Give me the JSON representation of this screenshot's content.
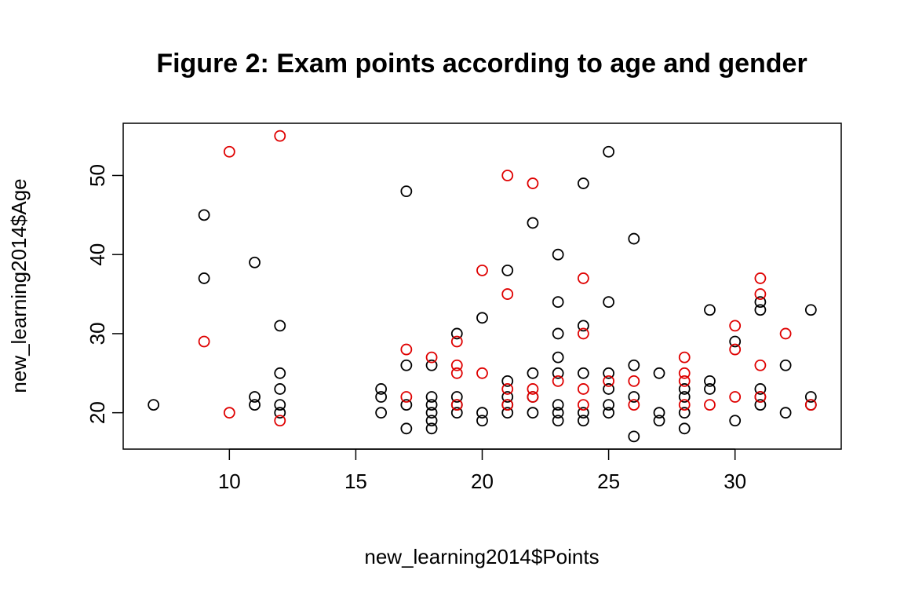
{
  "chart_data": {
    "type": "scatter",
    "title": "Figure 2: Exam points according to age and gender",
    "xlabel": "new_learning2014$Points",
    "ylabel": "new_learning2014$Age",
    "xlim": [
      5.8,
      34.2
    ],
    "ylim": [
      15.4,
      56.6
    ],
    "xticks": [
      10,
      15,
      20,
      25,
      30
    ],
    "yticks": [
      20,
      30,
      40,
      50
    ],
    "grid": false,
    "legend": "none",
    "series": [
      {
        "color": "#000000",
        "points": [
          [
            7,
            21
          ],
          [
            9,
            45
          ],
          [
            9,
            37
          ],
          [
            11,
            39
          ],
          [
            11,
            22
          ],
          [
            11,
            21
          ],
          [
            12,
            31
          ],
          [
            12,
            25
          ],
          [
            12,
            23
          ],
          [
            12,
            21
          ],
          [
            12,
            20
          ],
          [
            16,
            23
          ],
          [
            16,
            22
          ],
          [
            16,
            20
          ],
          [
            17,
            48
          ],
          [
            17,
            26
          ],
          [
            17,
            21
          ],
          [
            17,
            18
          ],
          [
            18,
            26
          ],
          [
            18,
            22
          ],
          [
            18,
            21
          ],
          [
            18,
            20
          ],
          [
            18,
            19
          ],
          [
            18,
            18
          ],
          [
            19,
            30
          ],
          [
            19,
            22
          ],
          [
            19,
            21
          ],
          [
            19,
            20
          ],
          [
            20,
            32
          ],
          [
            20,
            20
          ],
          [
            20,
            19
          ],
          [
            21,
            38
          ],
          [
            21,
            24
          ],
          [
            21,
            22
          ],
          [
            21,
            21
          ],
          [
            21,
            20
          ],
          [
            22,
            44
          ],
          [
            22,
            25
          ],
          [
            22,
            22
          ],
          [
            22,
            20
          ],
          [
            23,
            40
          ],
          [
            23,
            34
          ],
          [
            23,
            30
          ],
          [
            23,
            27
          ],
          [
            23,
            25
          ],
          [
            23,
            21
          ],
          [
            23,
            20
          ],
          [
            23,
            19
          ],
          [
            24,
            49
          ],
          [
            24,
            31
          ],
          [
            24,
            25
          ],
          [
            24,
            20
          ],
          [
            24,
            19
          ],
          [
            25,
            53
          ],
          [
            25,
            34
          ],
          [
            25,
            25
          ],
          [
            25,
            23
          ],
          [
            25,
            21
          ],
          [
            25,
            20
          ],
          [
            26,
            42
          ],
          [
            26,
            26
          ],
          [
            26,
            22
          ],
          [
            26,
            17
          ],
          [
            27,
            25
          ],
          [
            27,
            20
          ],
          [
            27,
            19
          ],
          [
            28,
            23
          ],
          [
            28,
            22
          ],
          [
            28,
            20
          ],
          [
            28,
            18
          ],
          [
            29,
            33
          ],
          [
            29,
            24
          ],
          [
            29,
            23
          ],
          [
            30,
            29
          ],
          [
            30,
            19
          ],
          [
            31,
            34
          ],
          [
            31,
            33
          ],
          [
            31,
            23
          ],
          [
            31,
            22
          ],
          [
            31,
            21
          ],
          [
            32,
            26
          ],
          [
            32,
            20
          ],
          [
            33,
            33
          ],
          [
            33,
            22
          ],
          [
            33,
            21
          ]
        ]
      },
      {
        "color": "#df0000",
        "points": [
          [
            9,
            29
          ],
          [
            10,
            53
          ],
          [
            10,
            20
          ],
          [
            12,
            55
          ],
          [
            12,
            19
          ],
          [
            17,
            28
          ],
          [
            17,
            22
          ],
          [
            18,
            27
          ],
          [
            19,
            29
          ],
          [
            19,
            26
          ],
          [
            19,
            25
          ],
          [
            19,
            21
          ],
          [
            20,
            38
          ],
          [
            20,
            25
          ],
          [
            21,
            50
          ],
          [
            21,
            35
          ],
          [
            21,
            23
          ],
          [
            21,
            21
          ],
          [
            22,
            49
          ],
          [
            22,
            23
          ],
          [
            22,
            22
          ],
          [
            23,
            24
          ],
          [
            24,
            37
          ],
          [
            24,
            30
          ],
          [
            24,
            23
          ],
          [
            24,
            21
          ],
          [
            25,
            24
          ],
          [
            26,
            24
          ],
          [
            26,
            21
          ],
          [
            28,
            27
          ],
          [
            28,
            25
          ],
          [
            28,
            24
          ],
          [
            28,
            21
          ],
          [
            29,
            21
          ],
          [
            30,
            31
          ],
          [
            30,
            28
          ],
          [
            30,
            22
          ],
          [
            31,
            37
          ],
          [
            31,
            35
          ],
          [
            31,
            26
          ],
          [
            31,
            22
          ],
          [
            32,
            30
          ],
          [
            33,
            21
          ]
        ]
      }
    ]
  }
}
